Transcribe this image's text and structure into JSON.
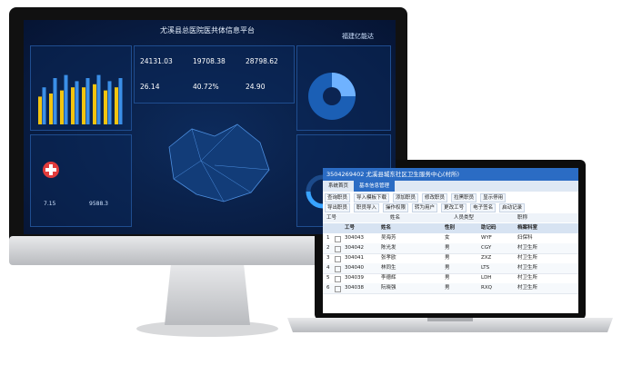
{
  "dashboard": {
    "title": "尤溪县总医院医共体信息平台",
    "logo": "福建亿能达",
    "stats": [
      "24131.03",
      "19708.38",
      "28798.62",
      "26.14",
      "40.72%",
      "24.90"
    ],
    "bar_chart": {
      "ylim": [
        0,
        100
      ],
      "yellow": [
        45,
        50,
        55,
        60,
        60,
        65,
        55,
        60
      ],
      "blue": [
        60,
        75,
        80,
        70,
        75,
        80,
        70,
        75
      ],
      "yellow_color": "#f2c40f",
      "blue_color": "#3a8fe8"
    },
    "small_values": [
      "7.15",
      "9588.3"
    ]
  },
  "app": {
    "title_bar": "3504269402 尤溪县城东社区卫生服务中心(村所)",
    "tabs": [
      "系统首页",
      "基本信息管理"
    ],
    "toolbar_1": [
      "查询职员",
      "导入模板下载",
      "添加职员",
      "修改职员",
      "拉黑职员",
      "显示停用"
    ],
    "toolbar_2": [
      "导出职员",
      "职员导入",
      "操作权限",
      "转为用户",
      "更改工号",
      "电子签名",
      "启动记录"
    ],
    "filters": [
      "工号",
      "姓名",
      "人员类型",
      "职称"
    ],
    "table": {
      "header": [
        "工号",
        "姓名",
        "性别",
        "助记码",
        "档案科室"
      ],
      "rows": [
        [
          "1",
          "304043",
          "吴海芳",
          "女",
          "WYF",
          "妇保科"
        ],
        [
          "2",
          "304042",
          "陈光发",
          "男",
          "CGY",
          "村卫生所"
        ],
        [
          "3",
          "304041",
          "张孝欧",
          "男",
          "ZXZ",
          "村卫生所"
        ],
        [
          "4",
          "304040",
          "林同生",
          "男",
          "LTS",
          "村卫生所"
        ],
        [
          "5",
          "304039",
          "李德辉",
          "男",
          "LDH",
          "村卫生所"
        ],
        [
          "6",
          "304038",
          "阮晓强",
          "男",
          "RXQ",
          "村卫生所"
        ]
      ]
    }
  }
}
